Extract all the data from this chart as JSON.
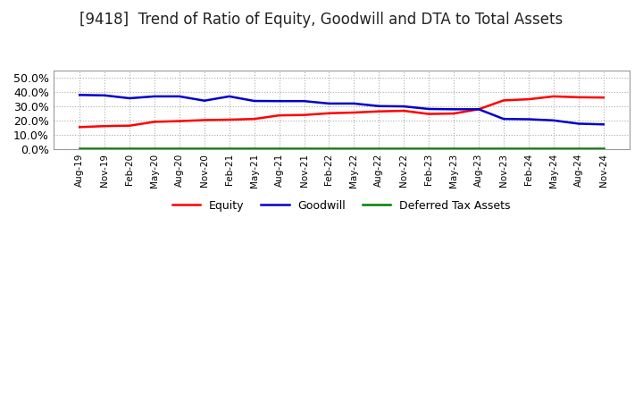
{
  "title": "[9418]  Trend of Ratio of Equity, Goodwill and DTA to Total Assets",
  "title_fontsize": 12,
  "ylim": [
    0.0,
    0.55
  ],
  "yticks": [
    0.0,
    0.1,
    0.2,
    0.3,
    0.4,
    0.5
  ],
  "x_labels": [
    "Aug-19",
    "Nov-19",
    "Feb-20",
    "May-20",
    "Aug-20",
    "Nov-20",
    "Feb-21",
    "May-21",
    "Aug-21",
    "Nov-21",
    "Feb-22",
    "May-22",
    "Aug-22",
    "Nov-22",
    "Feb-23",
    "May-23",
    "Aug-23",
    "Nov-23",
    "Feb-24",
    "May-24",
    "Aug-24",
    "Nov-24"
  ],
  "equity": [
    0.153,
    0.16,
    0.163,
    0.19,
    0.195,
    0.202,
    0.205,
    0.21,
    0.235,
    0.238,
    0.25,
    0.255,
    0.263,
    0.267,
    0.245,
    0.248,
    0.278,
    0.34,
    0.348,
    0.368,
    0.362,
    0.36
  ],
  "goodwill": [
    0.378,
    0.375,
    0.355,
    0.368,
    0.368,
    0.338,
    0.368,
    0.336,
    0.335,
    0.335,
    0.318,
    0.318,
    0.3,
    0.298,
    0.28,
    0.278,
    0.278,
    0.21,
    0.208,
    0.2,
    0.177,
    0.172
  ],
  "dta": [
    0.002,
    0.002,
    0.002,
    0.002,
    0.002,
    0.002,
    0.002,
    0.002,
    0.002,
    0.002,
    0.002,
    0.002,
    0.002,
    0.002,
    0.002,
    0.002,
    0.002,
    0.002,
    0.002,
    0.002,
    0.002,
    0.002
  ],
  "equity_color": "#ff0000",
  "goodwill_color": "#0000cc",
  "dta_color": "#008000",
  "legend_labels": [
    "Equity",
    "Goodwill",
    "Deferred Tax Assets"
  ],
  "background_color": "#ffffff",
  "grid_color": "#aaaaaa"
}
